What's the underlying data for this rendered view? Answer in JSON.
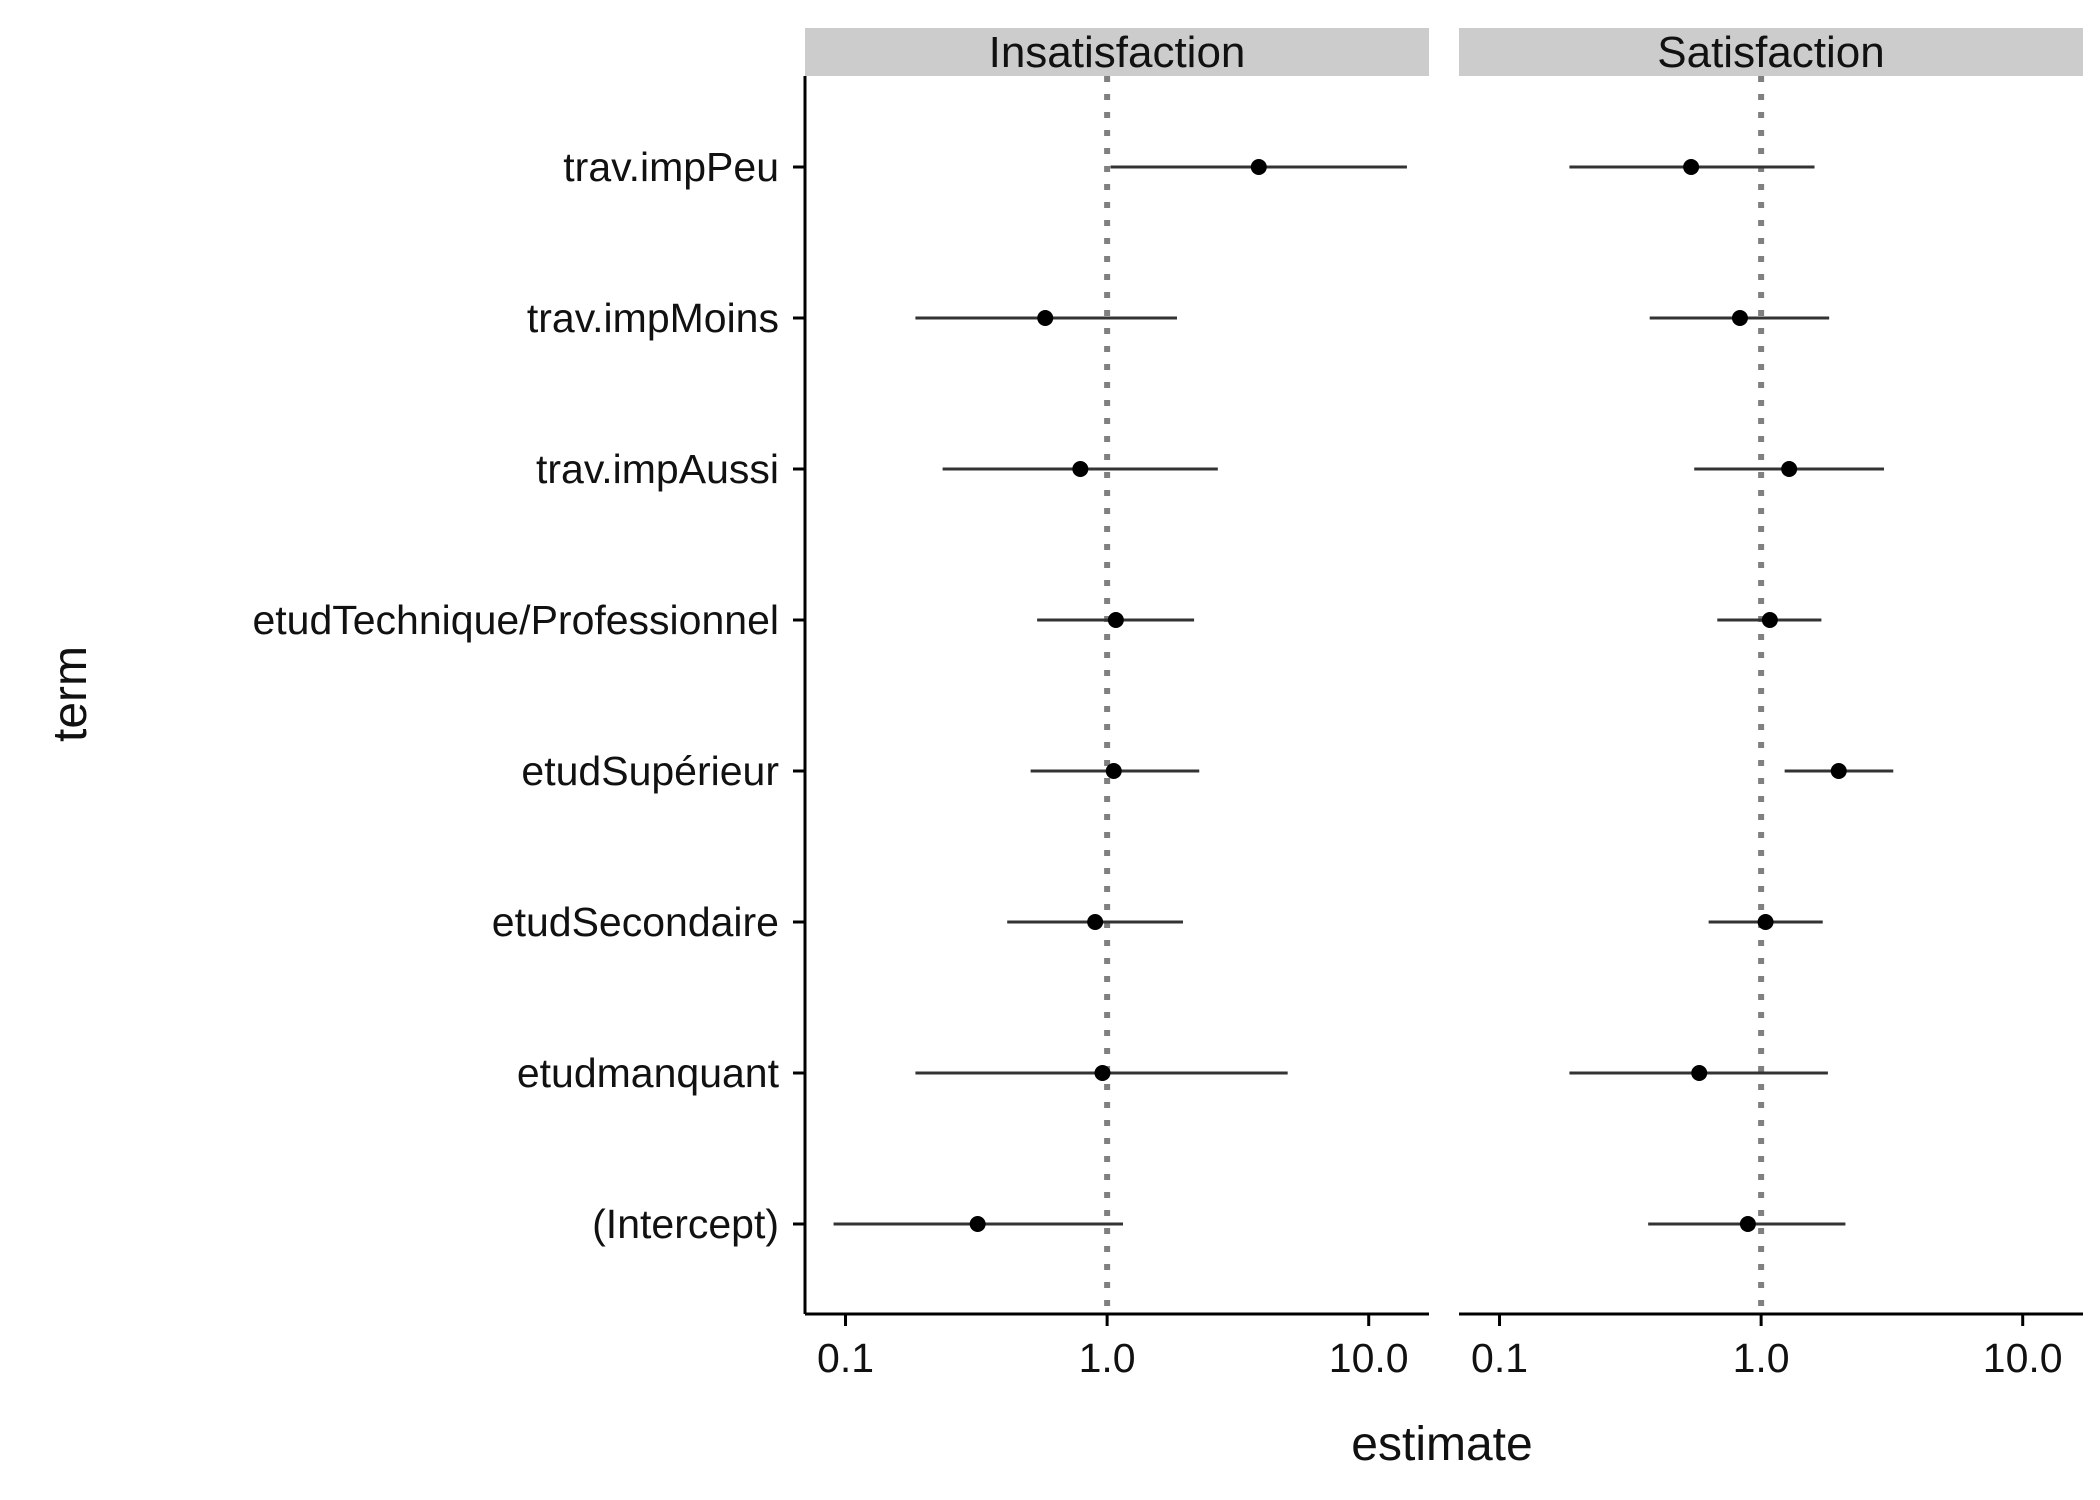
{
  "chart_data": {
    "type": "scatter",
    "subtype": "coefficient-plot-with-error-bars",
    "xlabel": "estimate",
    "ylabel": "term",
    "x_scale": "log10",
    "x_ticks": [
      0.1,
      1.0,
      10.0
    ],
    "x_tick_labels": [
      "0.1",
      "1.0",
      "10.0"
    ],
    "xlim": [
      0.07,
      17
    ],
    "reference_line": 1.0,
    "grid": false,
    "legend": "none",
    "terms": [
      "trav.impPeu",
      "trav.impMoins",
      "trav.impAussi",
      "etudTechnique/Professionnel",
      "etudSupérieur",
      "etudSecondaire",
      "etudmanquant",
      "(Intercept)"
    ],
    "panels": [
      {
        "name": "Insatisfaction",
        "points": [
          {
            "term": "trav.impPeu",
            "estimate": 3.8,
            "conf_low": 1.03,
            "conf_high": 14.0
          },
          {
            "term": "trav.impMoins",
            "estimate": 0.58,
            "conf_low": 0.185,
            "conf_high": 1.85
          },
          {
            "term": "trav.impAussi",
            "estimate": 0.79,
            "conf_low": 0.235,
            "conf_high": 2.65
          },
          {
            "term": "etudTechnique/Professionnel",
            "estimate": 1.08,
            "conf_low": 0.54,
            "conf_high": 2.15
          },
          {
            "term": "etudSupérieur",
            "estimate": 1.06,
            "conf_low": 0.51,
            "conf_high": 2.25
          },
          {
            "term": "etudSecondaire",
            "estimate": 0.9,
            "conf_low": 0.415,
            "conf_high": 1.95
          },
          {
            "term": "etudmanquant",
            "estimate": 0.96,
            "conf_low": 0.185,
            "conf_high": 4.9
          },
          {
            "term": "(Intercept)",
            "estimate": 0.32,
            "conf_low": 0.09,
            "conf_high": 1.15
          }
        ]
      },
      {
        "name": "Satisfaction",
        "points": [
          {
            "term": "trav.impPeu",
            "estimate": 0.54,
            "conf_low": 0.185,
            "conf_high": 1.6
          },
          {
            "term": "trav.impMoins",
            "estimate": 0.83,
            "conf_low": 0.375,
            "conf_high": 1.82
          },
          {
            "term": "trav.impAussi",
            "estimate": 1.28,
            "conf_low": 0.555,
            "conf_high": 2.95
          },
          {
            "term": "etudTechnique/Professionnel",
            "estimate": 1.08,
            "conf_low": 0.68,
            "conf_high": 1.7
          },
          {
            "term": "etudSupérieur",
            "estimate": 1.98,
            "conf_low": 1.23,
            "conf_high": 3.2
          },
          {
            "term": "etudSecondaire",
            "estimate": 1.04,
            "conf_low": 0.63,
            "conf_high": 1.72
          },
          {
            "term": "etudmanquant",
            "estimate": 0.58,
            "conf_low": 0.185,
            "conf_high": 1.8
          },
          {
            "term": "(Intercept)",
            "estimate": 0.89,
            "conf_low": 0.37,
            "conf_high": 2.1
          }
        ]
      }
    ]
  },
  "colors": {
    "strip_background": "#cccccc",
    "point": "#000000",
    "errorbar": "#333333",
    "reference_line": "#808080",
    "axis": "#000000",
    "text": "#111111"
  }
}
